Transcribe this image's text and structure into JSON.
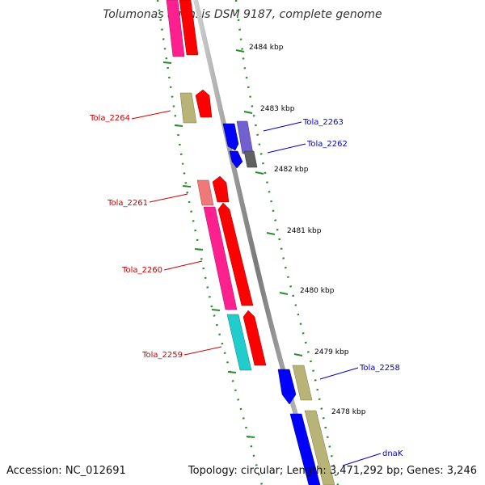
{
  "title": "Tolumonas auensis DSM 9187, complete genome",
  "footer": {
    "accession": "Accession: NC_012691",
    "topology": "Topology: circular; Length: 3,471,292 bp; Genes: 3,246"
  },
  "kbp_ticks": [
    "2484 kbp",
    "2483 kbp",
    "2482 kbp",
    "2481 kbp",
    "2480 kbp",
    "2479 kbp",
    "2478 kbp"
  ],
  "gene_labels": [
    {
      "text": "Tola_2264",
      "color": "#cc0000",
      "side": "left"
    },
    {
      "text": "Tola_2263",
      "color": "#0000cc",
      "side": "right"
    },
    {
      "text": "Tola_2262",
      "color": "#0000cc",
      "side": "right"
    },
    {
      "text": "Tola_2261",
      "color": "#cc0000",
      "side": "left"
    },
    {
      "text": "Tola_2260",
      "color": "#cc0000",
      "side": "left"
    },
    {
      "text": "Tola_2259",
      "color": "#cc0000",
      "side": "left"
    },
    {
      "text": "Tola_2258",
      "color": "#0000cc",
      "side": "right"
    },
    {
      "text": "dnaK",
      "color": "#0000cc",
      "side": "right"
    }
  ],
  "colors": {
    "backbone": "#8c8c8c",
    "tick_green": "#2a8c2a",
    "forward_strand": "#ff0000",
    "reverse_strand": "#0000ff",
    "magenta": "#ff2090",
    "pink": "#f07878",
    "olive": "#b8b478",
    "cyan": "#20cccc",
    "slate_blue": "#7060d0"
  }
}
